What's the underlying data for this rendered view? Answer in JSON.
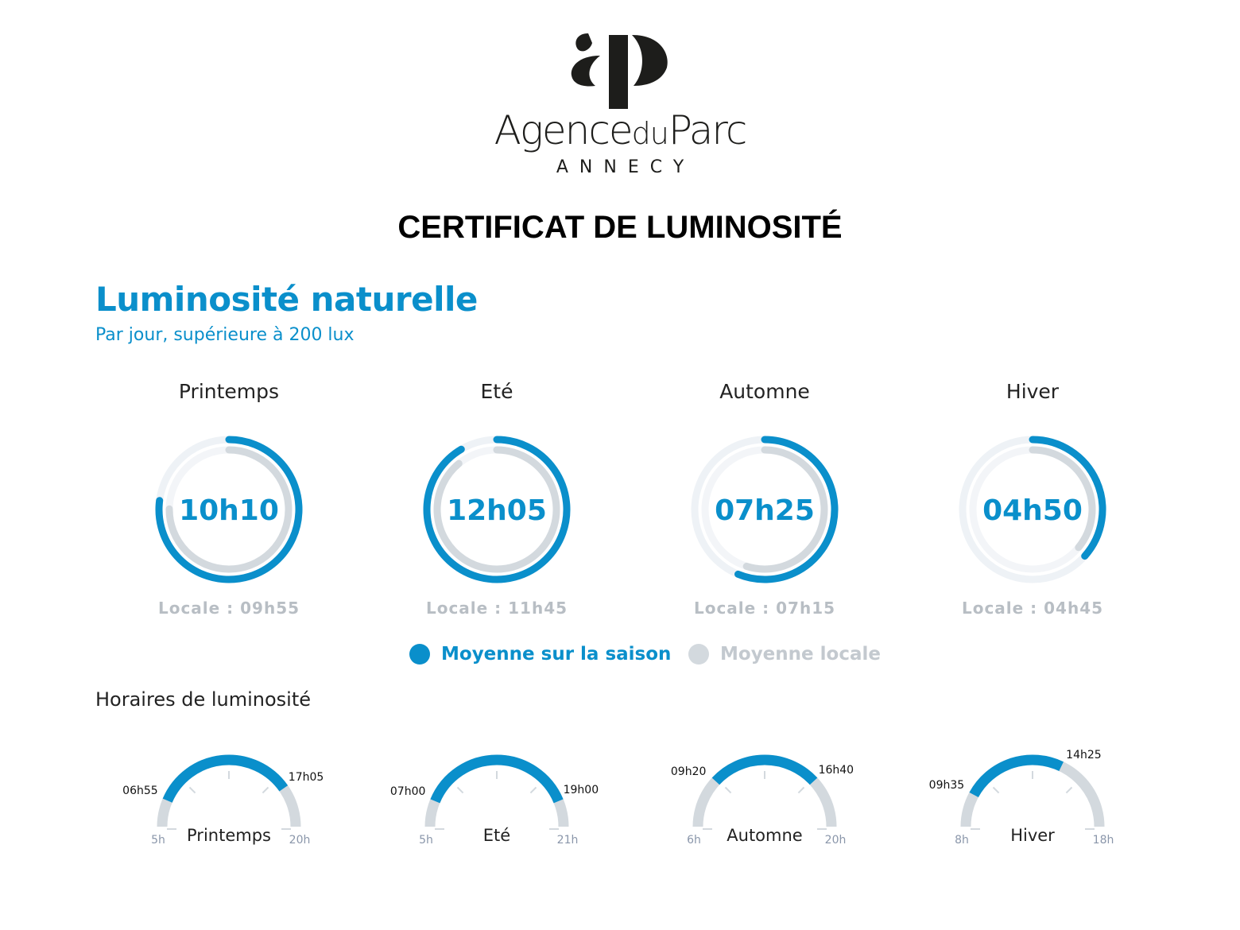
{
  "logo": {
    "monogram": "ap",
    "name": "Agence",
    "name_mid": "du",
    "name_end": "Parc",
    "city": "ANNECY"
  },
  "title": "CERTIFICAT DE LUMINOSITÉ",
  "section": {
    "title": "Luminosité naturelle",
    "subtitle": "Par jour, supérieure à 200 lux"
  },
  "colors": {
    "accent": "#0a8fcb",
    "local": "#d3d9de",
    "track": "#eef2f6"
  },
  "seasons": [
    {
      "name": "Printemps",
      "value": "10h10",
      "value_hours": 10.17,
      "local": "Locale : 09h55",
      "local_hours": 9.92
    },
    {
      "name": "Eté",
      "value": "12h05",
      "value_hours": 12.08,
      "local": "Locale : 11h45",
      "local_hours": 11.75
    },
    {
      "name": "Automne",
      "value": "07h25",
      "value_hours": 7.42,
      "local": "Locale : 07h15",
      "local_hours": 7.25
    },
    {
      "name": "Hiver",
      "value": "04h50",
      "value_hours": 4.83,
      "local": "Locale : 04h45",
      "local_hours": 4.75
    }
  ],
  "legend": {
    "season": "Moyenne sur la saison",
    "local": "Moyenne locale"
  },
  "hours_title": "Horaires de luminosité",
  "schedules": [
    {
      "name": "Printemps",
      "min_label": "5h",
      "max_label": "20h",
      "min": 5,
      "max": 20,
      "start_label": "06h55",
      "end_label": "17h05",
      "start": 6.917,
      "end": 17.083
    },
    {
      "name": "Eté",
      "min_label": "5h",
      "max_label": "21h",
      "min": 5,
      "max": 21,
      "start_label": "07h00",
      "end_label": "19h00",
      "start": 7.0,
      "end": 19.0
    },
    {
      "name": "Automne",
      "min_label": "6h",
      "max_label": "20h",
      "min": 6,
      "max": 20,
      "start_label": "09h20",
      "end_label": "16h40",
      "start": 9.333,
      "end": 16.667
    },
    {
      "name": "Hiver",
      "min_label": "8h",
      "max_label": "18h",
      "min": 8,
      "max": 18,
      "start_label": "09h35",
      "end_label": "14h25",
      "start": 9.583,
      "end": 14.417
    }
  ]
}
